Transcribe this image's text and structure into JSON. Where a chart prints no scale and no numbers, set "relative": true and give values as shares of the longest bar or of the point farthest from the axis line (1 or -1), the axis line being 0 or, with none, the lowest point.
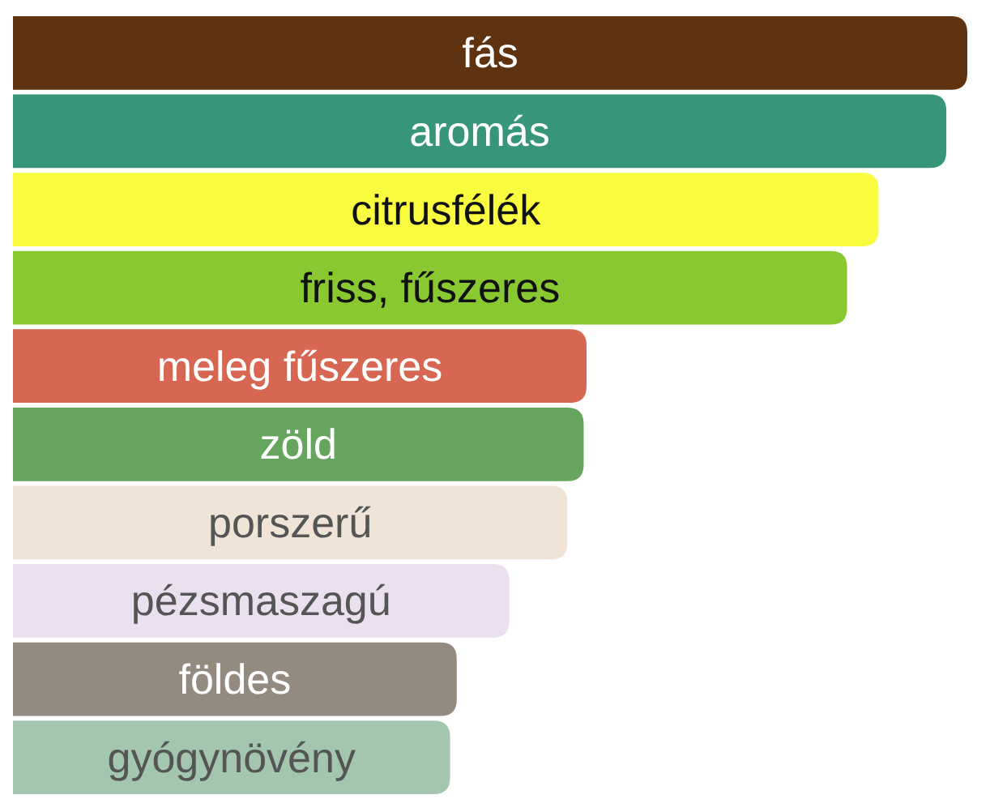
{
  "chart_data": {
    "type": "bar",
    "orientation": "horizontal",
    "relative": true,
    "categories": [
      "fás",
      "aromás",
      "citrusfélék",
      "friss, fűszeres",
      "meleg fűszeres",
      "zöld",
      "porszerű",
      "pézsmaszagú",
      "földes",
      "gyógynövény"
    ],
    "values": [
      1,
      0.978,
      0.907,
      0.874,
      0.601,
      0.598,
      0.581,
      0.52,
      0.465,
      0.458
    ],
    "colors": [
      "#5f3310",
      "#37967a",
      "#fafd3f",
      "#89c830",
      "#d76753",
      "#66a55d",
      "#f0e4d6",
      "#eae0ef",
      "#938a80",
      "#a4c6ae"
    ]
  }
}
